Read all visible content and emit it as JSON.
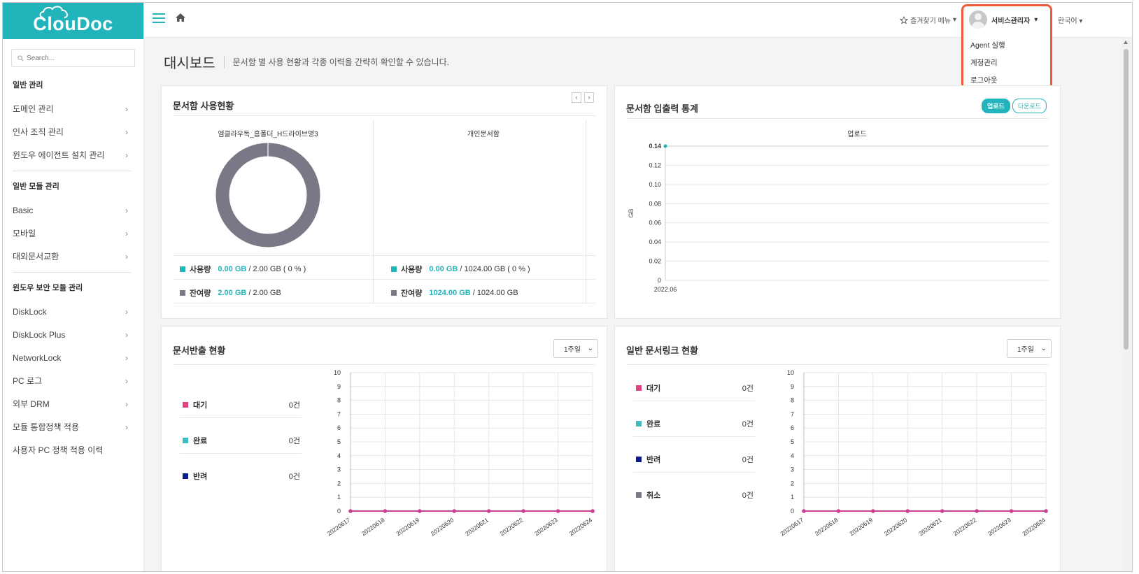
{
  "app": {
    "logo": "ClouDoc"
  },
  "search": {
    "placeholder": "Search..."
  },
  "sidebar": {
    "groups": [
      {
        "title": "일반 관리",
        "items": [
          "도메인 관리",
          "인사 조직 관리",
          "윈도우 에이전트 설치 관리"
        ]
      },
      {
        "title": "일반 모듈 관리",
        "items": [
          "Basic",
          "모바일",
          "대외문서교환"
        ]
      },
      {
        "title": "윈도우 보안 모듈 관리",
        "items": [
          "DiskLock",
          "DiskLock Plus",
          "NetworkLock",
          "PC 로그",
          "외부 DRM",
          "모듈 통합정책 적용",
          "사용자 PC 정책 적용 이력"
        ]
      }
    ]
  },
  "topbar": {
    "favorites": "즐겨찾기 메뉴",
    "user": "서비스관리자",
    "user_menu": [
      "Agent 실행",
      "계정관리",
      "로그아웃"
    ],
    "language": "한국어"
  },
  "page": {
    "title": "대시보드",
    "description": "문서함 별 사용 현황과 각종 이력을 간략히 확인할 수 있습니다."
  },
  "usage_panel": {
    "title": "문서함 사용현황",
    "columns": [
      {
        "name": "엠클라우독_홈폴더_H드라이브명3",
        "used_label": "사용량",
        "used_value": "0.00 GB",
        "used_total": "/ 2.00 GB ( 0 % )",
        "remain_label": "잔여량",
        "remain_value": "2.00 GB",
        "remain_total": "/ 2.00 GB"
      },
      {
        "name": "개인문서함",
        "used_label": "사용량",
        "used_value": "0.00 GB",
        "used_total": "/ 1024.00 GB ( 0 % )",
        "remain_label": "잔여량",
        "remain_value": "1024.00 GB",
        "remain_total": "/ 1024.00 GB"
      }
    ],
    "colors": {
      "used": "#21b5bb",
      "remain": "#7a7886"
    }
  },
  "io_panel": {
    "title": "문서함 입출력 통계",
    "btn_upload": "업로드",
    "btn_download": "다운로드"
  },
  "export_panel": {
    "title": "문서반출 현황",
    "period": "1주일",
    "stats": [
      {
        "label": "대기",
        "count": "0건",
        "color": "#e0407f"
      },
      {
        "label": "완료",
        "count": "0건",
        "color": "#3fbdbf"
      },
      {
        "label": "반려",
        "count": "0건",
        "color": "#0b1a8c"
      }
    ]
  },
  "link_panel": {
    "title": "일반 문서링크 현황",
    "period": "1주일",
    "stats": [
      {
        "label": "대기",
        "count": "0건",
        "color": "#e0407f"
      },
      {
        "label": "완료",
        "count": "0건",
        "color": "#3fbdbf"
      },
      {
        "label": "반려",
        "count": "0건",
        "color": "#0b1a8c"
      },
      {
        "label": "취소",
        "count": "0건",
        "color": "#7a7886"
      }
    ]
  },
  "chart_data": [
    {
      "type": "line",
      "title": "업로드",
      "ylabel": "GB",
      "x": [
        "2022.06"
      ],
      "series": [
        {
          "values": [
            0.14
          ],
          "color": "#21b5bb"
        }
      ],
      "ylim": [
        0,
        0.14
      ],
      "yticks": [
        "0",
        "0.02",
        "0.04",
        "0.06",
        "0.08",
        "0.10",
        "0.12",
        "0.14"
      ],
      "grid": true
    },
    {
      "type": "line",
      "x": [
        "20220617",
        "20220618",
        "20220619",
        "20220620",
        "20220621",
        "20220622",
        "20220623",
        "20220624"
      ],
      "series": [
        {
          "values": [
            0,
            0,
            0,
            0,
            0,
            0,
            0,
            0
          ],
          "color": "#c94090"
        }
      ],
      "ylim": [
        0,
        10
      ],
      "yticks": [
        "0",
        "1",
        "2",
        "3",
        "4",
        "5",
        "6",
        "7",
        "8",
        "9",
        "10"
      ],
      "grid": true
    },
    {
      "type": "line",
      "x": [
        "20220617",
        "20220618",
        "20220619",
        "20220620",
        "20220621",
        "20220622",
        "20220623",
        "20220624"
      ],
      "series": [
        {
          "values": [
            0,
            0,
            0,
            0,
            0,
            0,
            0,
            0
          ],
          "color": "#c94090"
        }
      ],
      "ylim": [
        0,
        10
      ],
      "yticks": [
        "0",
        "1",
        "2",
        "3",
        "4",
        "5",
        "6",
        "7",
        "8",
        "9",
        "10"
      ],
      "grid": true
    }
  ]
}
